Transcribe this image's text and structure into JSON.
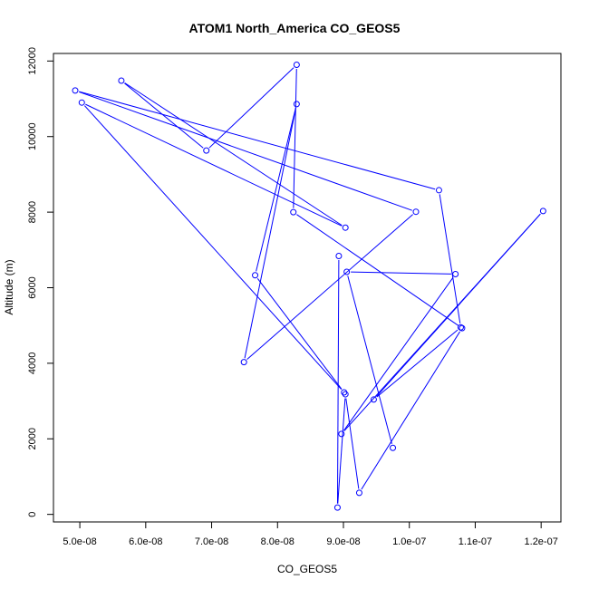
{
  "chart_data": {
    "type": "scatter",
    "title": "ATOM1 North_America CO_GEOS5",
    "xlabel": "CO_GEOS5",
    "ylabel": "Altitude (m)",
    "xlim": [
      4.6e-08,
      1.23e-07
    ],
    "ylim": [
      -200,
      12200
    ],
    "x_ticks": [
      5e-08,
      6e-08,
      7e-08,
      8e-08,
      9e-08,
      1e-07,
      1.1e-07,
      1.2e-07
    ],
    "x_tick_labels": [
      "5.0e-08",
      "6.0e-08",
      "7.0e-08",
      "8.0e-08",
      "9.0e-08",
      "1.0e-07",
      "1.1e-07",
      "1.2e-07"
    ],
    "y_ticks": [
      0,
      2000,
      4000,
      6000,
      8000,
      10000,
      12000
    ],
    "y_tick_labels": [
      "0",
      "2000",
      "4000",
      "6000",
      "8000",
      "10000",
      "12000"
    ],
    "color": "#0000ff",
    "x": [
      8.93e-08,
      8.91e-08,
      9.03e-08,
      9.24e-08,
      1.08e-07,
      8.24e-08,
      8.29e-08,
      6.92e-08,
      5.63e-08,
      9.03e-08,
      5.03e-08,
      9.01e-08,
      7.66e-08,
      8.29e-08,
      7.49e-08,
      1.01e-07,
      4.93e-08,
      1.045e-07,
      1.078e-07,
      9.46e-08,
      1.203e-07,
      8.97e-08,
      1.07e-07,
      9.05e-08,
      9.75e-08
    ],
    "y": [
      6840,
      180,
      3180,
      570,
      4930,
      8000,
      11900,
      9630,
      11480,
      7590,
      10900,
      3230,
      6330,
      10860,
      4030,
      8010,
      11220,
      8580,
      4950,
      3040,
      8030,
      2130,
      6360,
      6420,
      1760
    ]
  }
}
